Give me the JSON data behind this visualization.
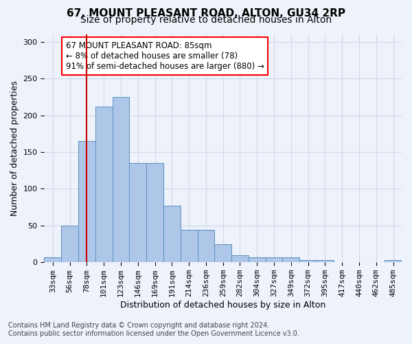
{
  "title": "67, MOUNT PLEASANT ROAD, ALTON, GU34 2RP",
  "subtitle": "Size of property relative to detached houses in Alton",
  "xlabel": "Distribution of detached houses by size in Alton",
  "ylabel": "Number of detached properties",
  "categories": [
    "33sqm",
    "56sqm",
    "78sqm",
    "101sqm",
    "123sqm",
    "146sqm",
    "169sqm",
    "191sqm",
    "214sqm",
    "236sqm",
    "259sqm",
    "282sqm",
    "304sqm",
    "327sqm",
    "349sqm",
    "372sqm",
    "395sqm",
    "417sqm",
    "440sqm",
    "462sqm",
    "485sqm"
  ],
  "values": [
    7,
    50,
    165,
    212,
    225,
    135,
    135,
    77,
    44,
    44,
    25,
    10,
    7,
    7,
    7,
    3,
    3,
    0,
    0,
    0,
    3
  ],
  "bar_color": "#aec6e8",
  "bar_edge_color": "#5a8fc0",
  "vline_x": 2,
  "vline_color": "#cc0000",
  "annotation_box_text": "67 MOUNT PLEASANT ROAD: 85sqm\n← 8% of detached houses are smaller (78)\n91% of semi-detached houses are larger (880) →",
  "ylim": [
    0,
    310
  ],
  "yticks": [
    0,
    50,
    100,
    150,
    200,
    250,
    300
  ],
  "grid_color": "#d0d8e8",
  "background_color": "#eef2fa",
  "footer_line1": "Contains HM Land Registry data © Crown copyright and database right 2024.",
  "footer_line2": "Contains public sector information licensed under the Open Government Licence v3.0.",
  "title_fontsize": 11,
  "subtitle_fontsize": 10,
  "xlabel_fontsize": 9,
  "ylabel_fontsize": 9,
  "tick_fontsize": 8,
  "annotation_fontsize": 8.5,
  "footer_fontsize": 7
}
